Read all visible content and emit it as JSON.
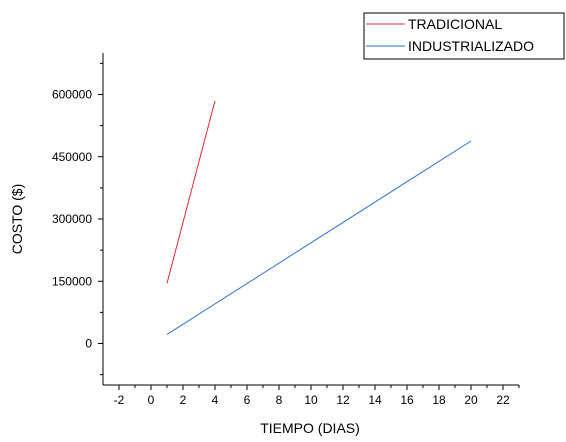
{
  "chart_data": {
    "type": "line",
    "title": "",
    "xlabel": "TIEMPO (DIAS)",
    "ylabel": "COSTO ($)",
    "xlim": [
      -3,
      23
    ],
    "ylim": [
      -100000,
      700000
    ],
    "x_ticks": [
      -2,
      0,
      2,
      4,
      6,
      8,
      10,
      12,
      14,
      16,
      18,
      20,
      22
    ],
    "y_ticks": [
      0,
      150000,
      300000,
      450000,
      600000
    ],
    "grid": false,
    "legend_position": "top-right",
    "series": [
      {
        "name": "TRADICIONAL",
        "color": "#e8292a",
        "x": [
          1,
          4
        ],
        "y": [
          145000,
          585000
        ]
      },
      {
        "name": "INDUSTRIALIZADO",
        "color": "#2a72d6",
        "x": [
          1,
          20
        ],
        "y": [
          22000,
          488000
        ]
      }
    ]
  }
}
